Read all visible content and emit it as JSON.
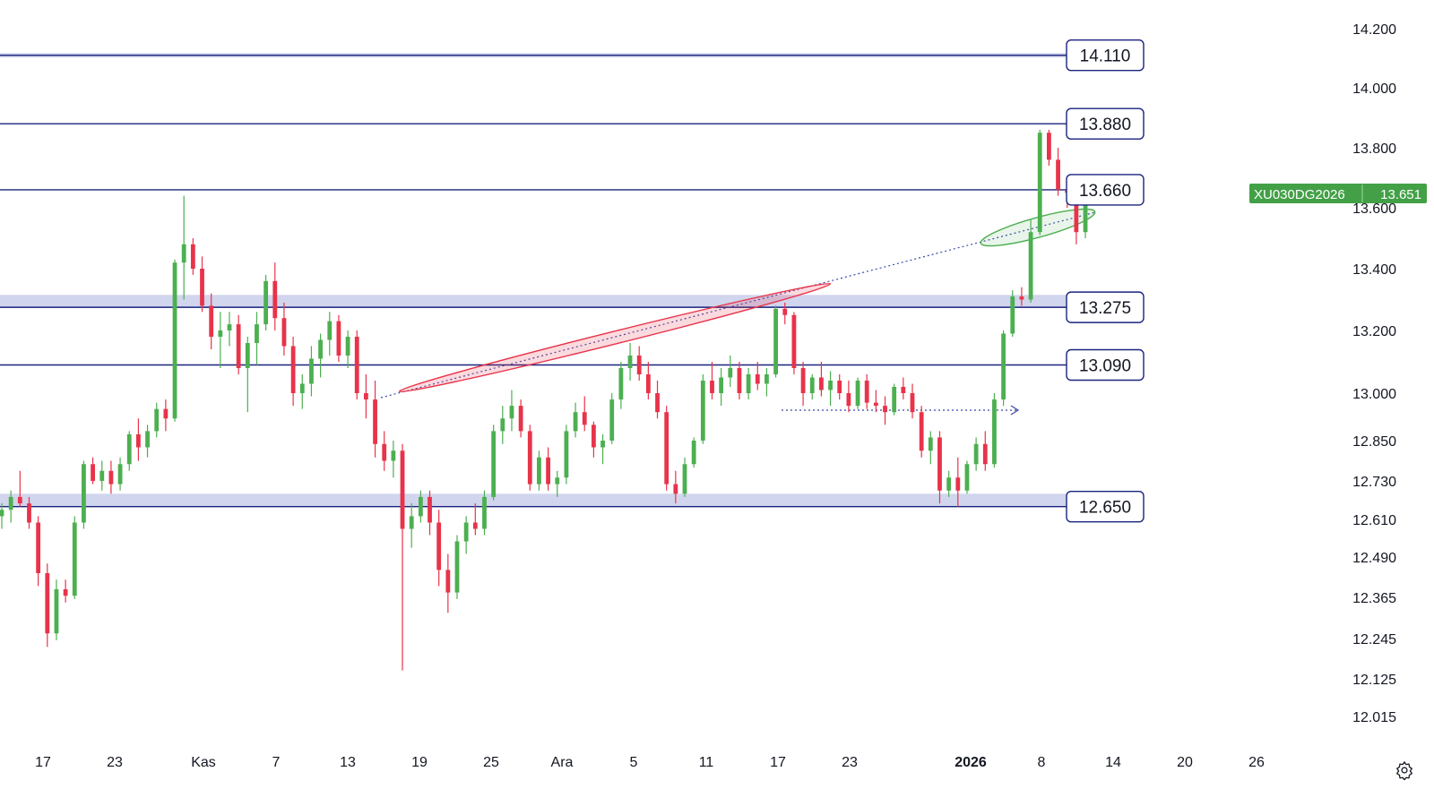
{
  "chart_data": {
    "type": "candlestick",
    "symbol": "XU030DG2026",
    "last_price": "13.651",
    "colors": {
      "up": "#4caf50",
      "down": "#e8334a",
      "level_line": "#1a237e",
      "zone": "#c5cae9",
      "badge": "#43a047",
      "trendline": "#3949ab",
      "red_ellipse": "#e8334a",
      "green_ellipse": "#4caf50"
    },
    "y_axis": {
      "ticks": [
        "14.200",
        "14.000",
        "13.800",
        "13.600",
        "13.400",
        "13.200",
        "13.000",
        "12.850",
        "12.730",
        "12.610",
        "12.490",
        "12.365",
        "12.245",
        "12.125",
        "12.015"
      ]
    },
    "x_axis": {
      "ticks": [
        "17",
        "23",
        "Kas",
        "7",
        "13",
        "19",
        "25",
        "Ara",
        "5",
        "11",
        "17",
        "23",
        "2026",
        "8",
        "14",
        "20",
        "26"
      ],
      "bold_tick": "2026"
    },
    "levels": [
      "14.110",
      "13.880",
      "13.660",
      "13.275",
      "13.090",
      "12.650"
    ],
    "zones": [
      {
        "label": "13.275"
      },
      {
        "label": "12.650"
      }
    ],
    "candles": [
      [
        12620,
        12660,
        12580,
        12640
      ],
      [
        12640,
        12700,
        12600,
        12680
      ],
      [
        12680,
        12760,
        12650,
        12660
      ],
      [
        12660,
        12680,
        12580,
        12600
      ],
      [
        12600,
        12620,
        12400,
        12440
      ],
      [
        12440,
        12470,
        12220,
        12260
      ],
      [
        12260,
        12420,
        12240,
        12390
      ],
      [
        12390,
        12420,
        12350,
        12370
      ],
      [
        12370,
        12620,
        12360,
        12600
      ],
      [
        12600,
        12790,
        12580,
        12780
      ],
      [
        12780,
        12800,
        12720,
        12730
      ],
      [
        12730,
        12790,
        12700,
        12760
      ],
      [
        12760,
        12790,
        12690,
        12720
      ],
      [
        12720,
        12800,
        12700,
        12780
      ],
      [
        12780,
        12880,
        12760,
        12870
      ],
      [
        12870,
        12920,
        12790,
        12830
      ],
      [
        12830,
        12900,
        12800,
        12880
      ],
      [
        12880,
        12970,
        12860,
        12950
      ],
      [
        12950,
        12980,
        12880,
        12920
      ],
      [
        12920,
        13430,
        12910,
        13420
      ],
      [
        13420,
        13640,
        13300,
        13480
      ],
      [
        13480,
        13500,
        13380,
        13400
      ],
      [
        13400,
        13440,
        13260,
        13280
      ],
      [
        13280,
        13320,
        13140,
        13180
      ],
      [
        13180,
        13260,
        13080,
        13200
      ],
      [
        13200,
        13260,
        13150,
        13220
      ],
      [
        13220,
        13250,
        13060,
        13080
      ],
      [
        13080,
        13180,
        12940,
        13160
      ],
      [
        13160,
        13260,
        13090,
        13220
      ],
      [
        13220,
        13380,
        13200,
        13360
      ],
      [
        13360,
        13420,
        13200,
        13240
      ],
      [
        13240,
        13290,
        13120,
        13150
      ],
      [
        13150,
        13180,
        12960,
        13000
      ],
      [
        13000,
        13060,
        12950,
        13030
      ],
      [
        13030,
        13150,
        12990,
        13110
      ],
      [
        13110,
        13190,
        13050,
        13170
      ],
      [
        13170,
        13260,
        13120,
        13230
      ],
      [
        13230,
        13250,
        13100,
        13120
      ],
      [
        13120,
        13200,
        13080,
        13180
      ],
      [
        13180,
        13200,
        12980,
        13000
      ],
      [
        13000,
        13060,
        12920,
        12980
      ],
      [
        12980,
        13040,
        12800,
        12840
      ],
      [
        12840,
        12880,
        12760,
        12790
      ],
      [
        12790,
        12850,
        12740,
        12820
      ],
      [
        12820,
        12840,
        12150,
        12580
      ],
      [
        12580,
        12660,
        12520,
        12620
      ],
      [
        12620,
        12700,
        12600,
        12680
      ],
      [
        12680,
        12700,
        12560,
        12600
      ],
      [
        12600,
        12640,
        12400,
        12450
      ],
      [
        12450,
        12500,
        12320,
        12380
      ],
      [
        12380,
        12560,
        12360,
        12540
      ],
      [
        12540,
        12620,
        12500,
        12600
      ],
      [
        12600,
        12660,
        12560,
        12580
      ],
      [
        12580,
        12700,
        12560,
        12680
      ],
      [
        12680,
        12900,
        12670,
        12880
      ],
      [
        12880,
        12960,
        12840,
        12920
      ],
      [
        12920,
        13010,
        12880,
        12960
      ],
      [
        12960,
        12980,
        12860,
        12880
      ],
      [
        12880,
        12900,
        12700,
        12720
      ],
      [
        12720,
        12820,
        12700,
        12800
      ],
      [
        12800,
        12830,
        12700,
        12720
      ],
      [
        12720,
        12760,
        12680,
        12740
      ],
      [
        12740,
        12900,
        12720,
        12880
      ],
      [
        12880,
        12970,
        12860,
        12940
      ],
      [
        12940,
        12990,
        12880,
        12900
      ],
      [
        12900,
        12910,
        12800,
        12830
      ],
      [
        12830,
        12870,
        12780,
        12850
      ],
      [
        12850,
        13000,
        12840,
        12980
      ],
      [
        12980,
        13100,
        12950,
        13080
      ],
      [
        13080,
        13160,
        13040,
        13120
      ],
      [
        13120,
        13150,
        13040,
        13060
      ],
      [
        13060,
        13100,
        12980,
        13000
      ],
      [
        13000,
        13040,
        12920,
        12940
      ],
      [
        12940,
        12960,
        12700,
        12720
      ],
      [
        12720,
        12760,
        12660,
        12690
      ],
      [
        12690,
        12800,
        12680,
        12780
      ],
      [
        12780,
        12860,
        12770,
        12850
      ],
      [
        12850,
        13060,
        12840,
        13040
      ],
      [
        13040,
        13100,
        12980,
        13000
      ],
      [
        13000,
        13080,
        12960,
        13050
      ],
      [
        13050,
        13120,
        13020,
        13080
      ],
      [
        13080,
        13100,
        12980,
        13000
      ],
      [
        13000,
        13080,
        12980,
        13060
      ],
      [
        13060,
        13100,
        13010,
        13030
      ],
      [
        13030,
        13080,
        12990,
        13060
      ],
      [
        13060,
        13280,
        13050,
        13270
      ],
      [
        13270,
        13290,
        13220,
        13250
      ],
      [
        13250,
        13260,
        13060,
        13080
      ],
      [
        13080,
        13100,
        12960,
        13000
      ],
      [
        13000,
        13060,
        12980,
        13050
      ],
      [
        13050,
        13100,
        12990,
        13010
      ],
      [
        13010,
        13070,
        12960,
        13040
      ],
      [
        13040,
        13060,
        12980,
        13000
      ],
      [
        13000,
        13040,
        12940,
        12960
      ],
      [
        12960,
        13050,
        12950,
        13040
      ],
      [
        13040,
        13060,
        12950,
        12970
      ],
      [
        12970,
        13010,
        12940,
        12960
      ],
      [
        12960,
        12990,
        12900,
        12940
      ],
      [
        12940,
        13030,
        12930,
        13020
      ],
      [
        13020,
        13050,
        12980,
        13000
      ],
      [
        13000,
        13030,
        12920,
        12940
      ],
      [
        12940,
        12960,
        12800,
        12820
      ],
      [
        12820,
        12880,
        12780,
        12860
      ],
      [
        12860,
        12880,
        12660,
        12700
      ],
      [
        12700,
        12760,
        12680,
        12740
      ],
      [
        12740,
        12800,
        12650,
        12700
      ],
      [
        12700,
        12790,
        12690,
        12780
      ],
      [
        12780,
        12860,
        12760,
        12840
      ],
      [
        12840,
        12880,
        12760,
        12780
      ],
      [
        12780,
        13000,
        12770,
        12980
      ],
      [
        12980,
        13200,
        12960,
        13190
      ],
      [
        13190,
        13330,
        13180,
        13310
      ],
      [
        13310,
        13340,
        13280,
        13300
      ],
      [
        13300,
        13560,
        13290,
        13520
      ],
      [
        13520,
        13860,
        13510,
        13850
      ],
      [
        13850,
        13860,
        13740,
        13760
      ],
      [
        13760,
        13800,
        13640,
        13660
      ],
      [
        13660,
        13700,
        13600,
        13650
      ],
      [
        13650,
        13680,
        13480,
        13520
      ],
      [
        13520,
        13710,
        13500,
        13660
      ],
      [
        13660,
        13680,
        13610,
        13651
      ]
    ]
  }
}
